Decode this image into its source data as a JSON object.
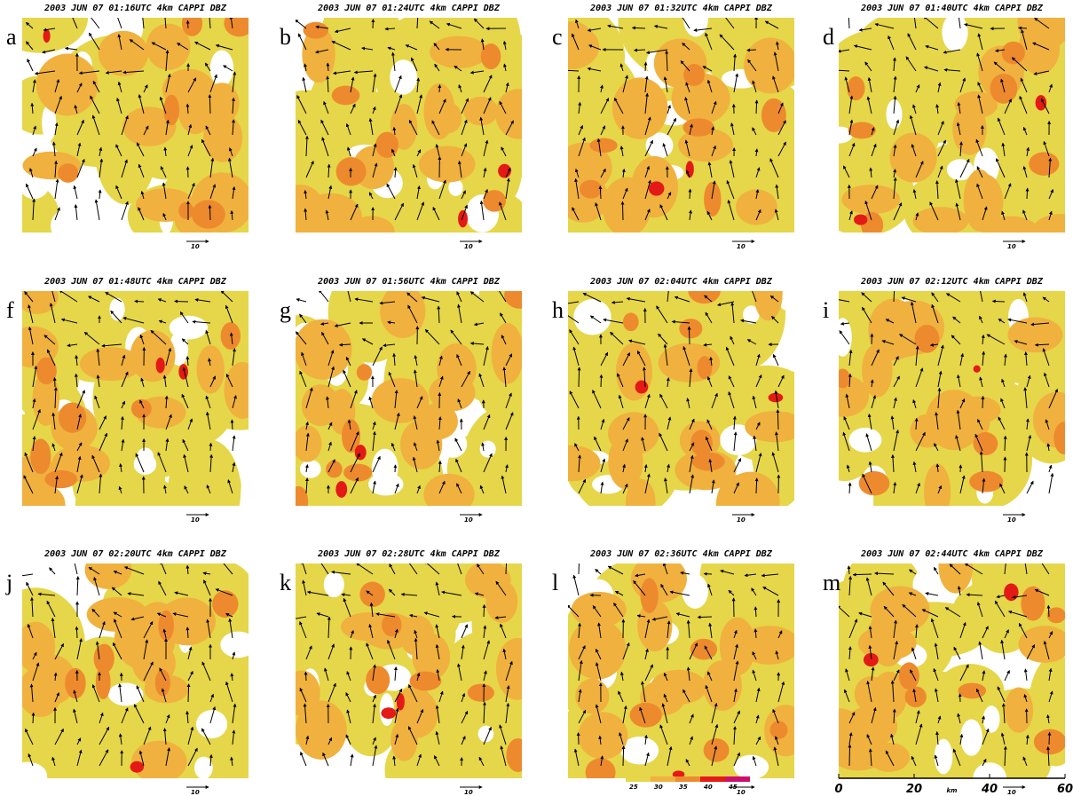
{
  "panels": [
    {
      "letter": "a",
      "title": "2003 JUN 07 01:16UTC 4km CAPPI DBZ"
    },
    {
      "letter": "b",
      "title": "2003 JUN 07 01:24UTC 4km CAPPI DBZ"
    },
    {
      "letter": "c",
      "title": "2003 JUN 07 01:32UTC 4km CAPPI DBZ"
    },
    {
      "letter": "d",
      "title": "2003 JUN 07 01:40UTC 4km CAPPI DBZ"
    },
    {
      "letter": "f",
      "title": "2003 JUN 07 01:48UTC 4km CAPPI DBZ"
    },
    {
      "letter": "g",
      "title": "2003 JUN 07 01:56UTC 4km CAPPI DBZ"
    },
    {
      "letter": "h",
      "title": "2003 JUN 07 02:04UTC 4km CAPPI DBZ"
    },
    {
      "letter": "i",
      "title": "2003 JUN 07 02:12UTC 4km CAPPI DBZ"
    },
    {
      "letter": "j",
      "title": "2003 JUN 07 02:20UTC 4km CAPPI DBZ"
    },
    {
      "letter": "k",
      "title": "2003 JUN 07 02:28UTC 4km CAPPI DBZ"
    },
    {
      "letter": "l",
      "title": "2003 JUN 07 02:36UTC 4km CAPPI DBZ"
    },
    {
      "letter": "m",
      "title": "2003 JUN 07 02:44UTC 4km CAPPI DBZ"
    }
  ],
  "vector_scale_label": "10",
  "colorbar": {
    "ticks": [
      25,
      30,
      35,
      40,
      45
    ],
    "colors": [
      "#e6d649",
      "#f0b13e",
      "#ee8a2e",
      "#e41a16",
      "#cc0f6c"
    ]
  },
  "x_axis": {
    "lim": [
      0,
      60
    ],
    "ticks": [
      0,
      20,
      40,
      60
    ],
    "label": "km"
  }
}
